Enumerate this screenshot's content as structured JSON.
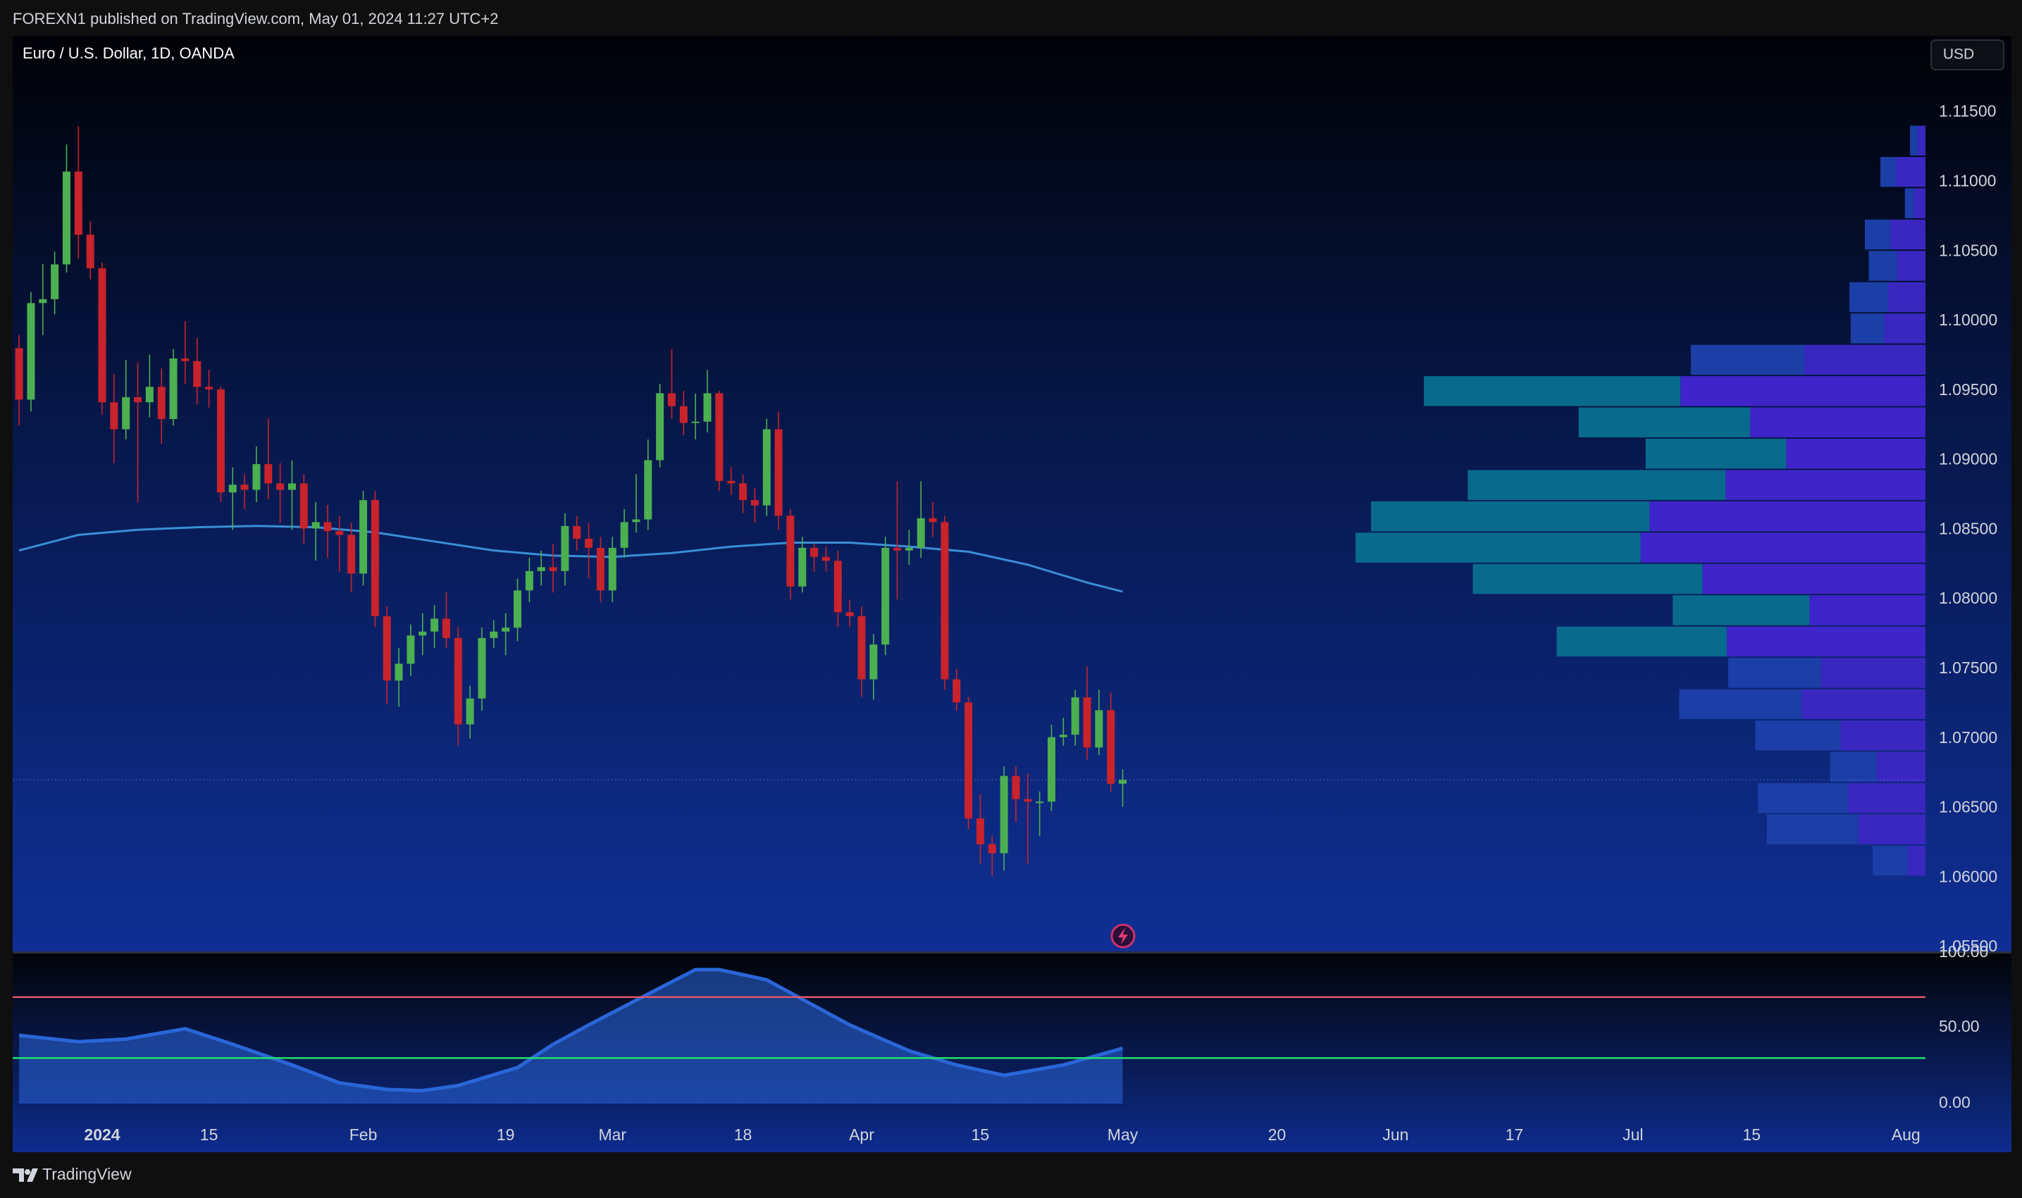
{
  "header": {
    "published": "FOREXN1 published on TradingView.com, May 01, 2024 11:27 UTC+2",
    "currency": "USD",
    "footer": "TradingView"
  },
  "chart_data": [
    {
      "type": "candlestick",
      "title": "Euro / U.S. Dollar, 1D, OANDA",
      "up_color": "#4caf50",
      "down_color": "#c9232b",
      "open": [
        1.09806,
        1.09436,
        1.1013,
        1.10158,
        1.10408,
        1.11075,
        1.10621,
        1.1038,
        1.09417,
        1.09223,
        1.09454,
        1.09417,
        1.09528,
        1.09297,
        1.09732,
        1.09713,
        1.09528,
        1.0951,
        1.08769,
        1.08825,
        1.08788,
        1.08973,
        1.08834,
        1.08788,
        1.08834,
        1.0851,
        1.08556,
        1.08491,
        1.08464,
        1.08186,
        1.08714,
        1.0788,
        1.07417,
        1.07538,
        1.07741,
        1.07769,
        1.07862,
        1.07723,
        1.07102,
        1.07288,
        1.07723,
        1.07769,
        1.07797,
        1.08065,
        1.08204,
        1.08232,
        1.08204,
        1.08528,
        1.08436,
        1.08371,
        1.08065,
        1.08371,
        1.08556,
        1.08575,
        1.09001,
        1.09482,
        1.09389,
        1.09269,
        1.09278,
        1.09482,
        1.08852,
        1.08834,
        1.08714,
        1.08676,
        1.09223,
        1.08602,
        1.08093,
        1.08371,
        1.08306,
        1.08278,
        1.07908,
        1.0788,
        1.07426,
        1.07676,
        1.08371,
        1.08352,
        1.08371,
        1.08584,
        1.08556,
        1.07426,
        1.0726,
        1.06426,
        1.06241,
        1.06176,
        1.06732,
        1.06565,
        1.06547,
        1.06547,
        1.0701,
        1.07028,
        1.07297,
        1.06936,
        1.07204,
        1.06676
      ],
      "high": [
        1.099,
        1.1021,
        1.1041,
        1.105,
        1.1127,
        1.114,
        1.1072,
        1.1042,
        1.0962,
        1.0972,
        1.097,
        1.0976,
        1.0966,
        1.098,
        1.1,
        1.0988,
        1.0965,
        1.0953,
        1.0895,
        1.089,
        1.091,
        1.093,
        1.0898,
        1.09,
        1.089,
        1.087,
        1.0868,
        1.086,
        1.0855,
        1.0878,
        1.0878,
        1.0795,
        1.0765,
        1.0782,
        1.079,
        1.0796,
        1.0805,
        1.078,
        1.0738,
        1.078,
        1.0785,
        1.079,
        1.0815,
        1.083,
        1.0835,
        1.084,
        1.0862,
        1.086,
        1.0855,
        1.0845,
        1.0845,
        1.0865,
        1.089,
        1.0915,
        1.0955,
        1.098,
        1.095,
        1.0948,
        1.0965,
        1.095,
        1.0895,
        1.089,
        1.088,
        1.093,
        1.0935,
        1.0865,
        1.0845,
        1.084,
        1.0838,
        1.0835,
        1.08,
        1.0795,
        1.0775,
        1.0845,
        1.0885,
        1.085,
        1.0885,
        1.087,
        1.086,
        1.075,
        1.073,
        1.066,
        1.063,
        1.068,
        1.068,
        1.0675,
        1.0662,
        1.071,
        1.0715,
        1.0735,
        1.0752,
        1.0735,
        1.0733,
        1.0678
      ],
      "low": [
        1.0925,
        1.0935,
        1.099,
        1.1005,
        1.1035,
        1.1045,
        1.103,
        1.0933,
        1.0898,
        1.0915,
        1.087,
        1.0931,
        1.0912,
        1.0925,
        1.0955,
        1.094,
        1.0938,
        1.087,
        1.085,
        1.0865,
        1.087,
        1.0872,
        1.0855,
        1.085,
        1.084,
        1.0828,
        1.083,
        1.082,
        1.0805,
        1.081,
        1.078,
        1.0725,
        1.0723,
        1.0745,
        1.076,
        1.0765,
        1.0765,
        1.0695,
        1.07,
        1.072,
        1.0765,
        1.076,
        1.077,
        1.0798,
        1.081,
        1.0805,
        1.081,
        1.0835,
        1.0815,
        1.0798,
        1.0798,
        1.083,
        1.0848,
        1.085,
        1.0895,
        1.093,
        1.0918,
        1.0915,
        1.092,
        1.0878,
        1.0875,
        1.0862,
        1.0855,
        1.086,
        1.085,
        1.08,
        1.0805,
        1.082,
        1.082,
        1.078,
        1.078,
        1.073,
        1.0728,
        1.076,
        1.08,
        1.0825,
        1.083,
        1.0845,
        1.0735,
        1.072,
        1.0635,
        1.061,
        1.0601,
        1.0605,
        1.064,
        1.061,
        1.063,
        1.0648,
        1.0695,
        1.0695,
        1.0685,
        1.0688,
        1.0662,
        1.0651
      ],
      "close": [
        1.09436,
        1.1013,
        1.10158,
        1.10408,
        1.11075,
        1.10621,
        1.1038,
        1.09417,
        1.09223,
        1.09454,
        1.09417,
        1.09528,
        1.09297,
        1.09732,
        1.09713,
        1.09528,
        1.0951,
        1.08769,
        1.08825,
        1.08788,
        1.08973,
        1.08834,
        1.08788,
        1.08834,
        1.0851,
        1.08556,
        1.08491,
        1.08464,
        1.08186,
        1.08714,
        1.0788,
        1.07417,
        1.07538,
        1.07741,
        1.07769,
        1.07862,
        1.07723,
        1.07102,
        1.07288,
        1.07723,
        1.07769,
        1.07797,
        1.08065,
        1.08204,
        1.08232,
        1.08204,
        1.08528,
        1.08436,
        1.08371,
        1.08065,
        1.08371,
        1.08556,
        1.08575,
        1.09001,
        1.09482,
        1.09389,
        1.09269,
        1.09278,
        1.09482,
        1.08852,
        1.08834,
        1.08714,
        1.08676,
        1.09223,
        1.08602,
        1.08093,
        1.08371,
        1.08306,
        1.08278,
        1.07908,
        1.0788,
        1.07426,
        1.07676,
        1.08371,
        1.08352,
        1.08371,
        1.08584,
        1.08556,
        1.07426,
        1.0726,
        1.06426,
        1.06241,
        1.06176,
        1.06732,
        1.06565,
        1.06547,
        1.06547,
        1.0701,
        1.07028,
        1.07297,
        1.06936,
        1.07204,
        1.06676,
        1.06704
      ],
      "moving_average": {
        "color": "#3a8fd6",
        "x": [
          0,
          5,
          10,
          15,
          20,
          25,
          30,
          35,
          40,
          45,
          50,
          55,
          60,
          65,
          70,
          75,
          80,
          85,
          90,
          93
        ],
        "values": [
          1.08352,
          1.08464,
          1.08501,
          1.08519,
          1.08528,
          1.08519,
          1.08482,
          1.08417,
          1.08352,
          1.08315,
          1.08306,
          1.08334,
          1.0838,
          1.08408,
          1.08408,
          1.0838,
          1.08343,
          1.0825,
          1.08121,
          1.08056
        ]
      },
      "volume_profile": {
        "price_start": 1.0601,
        "row_height": 0.00225,
        "value_area": [
          1.07585,
          1.0961
        ],
        "up_color": "#1b3fa6",
        "down_color": "#3a27bf",
        "value_area_up_color": "#086a8c",
        "value_area_down_color": "#3f24c9",
        "rows": [
          {
            "up": 27,
            "down": 14
          },
          {
            "up": 71,
            "down": 52
          },
          {
            "up": 70,
            "down": 60
          },
          {
            "up": 36,
            "down": 38
          },
          {
            "up": 66,
            "down": 66
          },
          {
            "up": 95,
            "down": 96
          },
          {
            "up": 72,
            "down": 81
          },
          {
            "up": 132,
            "down": 154
          },
          {
            "up": 106,
            "down": 90
          },
          {
            "up": 178,
            "down": 173
          },
          {
            "up": 221,
            "down": 221
          },
          {
            "up": 216,
            "down": 214
          },
          {
            "up": 200,
            "down": 155
          },
          {
            "up": 109,
            "down": 108
          },
          {
            "up": 133,
            "down": 136
          },
          {
            "up": 199,
            "down": 190
          },
          {
            "up": 88,
            "down": 94
          },
          {
            "up": 26,
            "down": 32
          },
          {
            "up": 30,
            "down": 29
          },
          {
            "up": 22,
            "down": 22
          },
          {
            "up": 20,
            "down": 27
          },
          {
            "up": 7,
            "down": 9
          },
          {
            "up": 12,
            "down": 23
          },
          {
            "up": 6,
            "down": 6
          }
        ]
      },
      "ylim": [
        1.0547,
        1.1205
      ],
      "yticks": [
        {
          "value": 1.055,
          "label": "1.05500"
        },
        {
          "value": 1.06,
          "label": "1.06000"
        },
        {
          "value": 1.065,
          "label": "1.06500"
        },
        {
          "value": 1.07,
          "label": "1.07000"
        },
        {
          "value": 1.075,
          "label": "1.07500"
        },
        {
          "value": 1.08,
          "label": "1.08000"
        },
        {
          "value": 1.085,
          "label": "1.08500"
        },
        {
          "value": 1.09,
          "label": "1.09000"
        },
        {
          "value": 1.095,
          "label": "1.09500"
        },
        {
          "value": 1.1,
          "label": "1.10000"
        },
        {
          "value": 1.105,
          "label": "1.10500"
        },
        {
          "value": 1.11,
          "label": "1.11000"
        },
        {
          "value": 1.115,
          "label": "1.11500"
        }
      ],
      "xlim": [
        -0.54,
        160.65
      ],
      "xticks": [
        {
          "value": 7,
          "label": "2024"
        },
        {
          "value": 16,
          "label": "15"
        },
        {
          "value": 29,
          "label": "Feb"
        },
        {
          "value": 41,
          "label": "19"
        },
        {
          "value": 50,
          "label": "Mar"
        },
        {
          "value": 61,
          "label": "18"
        },
        {
          "value": 71,
          "label": "Apr"
        },
        {
          "value": 81,
          "label": "15"
        },
        {
          "value": 93,
          "label": "May"
        },
        {
          "value": 106,
          "label": "20"
        },
        {
          "value": 116,
          "label": "Jun"
        },
        {
          "value": 126,
          "label": "17"
        },
        {
          "value": 136,
          "label": "Jul"
        },
        {
          "value": 146,
          "label": "15"
        },
        {
          "value": 159,
          "label": "Aug"
        }
      ],
      "grid": false
    },
    {
      "type": "area",
      "color": "#2a66d8",
      "x": [
        0,
        5,
        9,
        14,
        18,
        23,
        27,
        31,
        34,
        37,
        42,
        45,
        48,
        53,
        57,
        59,
        63,
        66,
        70,
        75,
        79,
        83,
        88,
        93
      ],
      "values": [
        44.9,
        40.7,
        42.4,
        49.2,
        39.0,
        25.4,
        13.6,
        9.3,
        8.5,
        11.9,
        23.7,
        39.0,
        51.7,
        72.0,
        88.1,
        88.1,
        81.4,
        68.6,
        51.7,
        34.7,
        25.4,
        18.6,
        25.4,
        36.4
      ],
      "levels": [
        {
          "value": 70,
          "color": "#e0566a"
        },
        {
          "value": 30,
          "color": "#22e06a"
        }
      ],
      "xlim": [
        -0.54,
        160.65
      ],
      "ylim": [
        0,
        100
      ],
      "yticks": [
        {
          "value": 0,
          "label": "0.00"
        },
        {
          "value": 50,
          "label": "50.00"
        },
        {
          "value": 100,
          "label": "100.00"
        }
      ]
    }
  ]
}
